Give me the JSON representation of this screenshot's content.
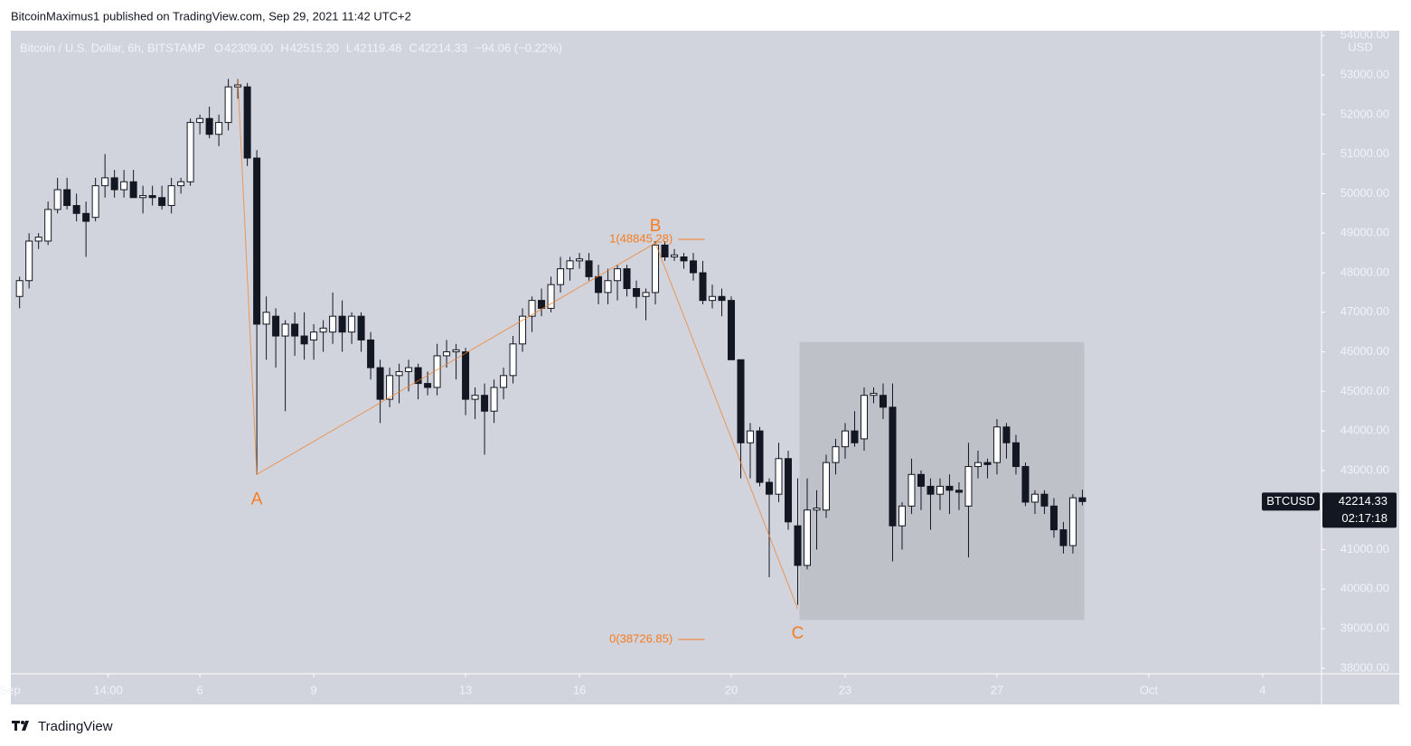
{
  "attribution": "BitcoinMaximus1 published on TradingView.com, Sep 29, 2021 11:42 UTC+2",
  "footer": "TradingView",
  "chart_data": {
    "type": "candlestick",
    "title": "Bitcoin / U.S. Dollar, 6h, BITSTAMP",
    "ohlc_header": [
      {
        "key": "O",
        "value": "42309.00"
      },
      {
        "key": "H",
        "value": "42515.20"
      },
      {
        "key": "L",
        "value": "42119.48"
      },
      {
        "key": "C",
        "value": "42214.33"
      }
    ],
    "change": "−94.06 (−0.22%)",
    "y_axis_label": "USD",
    "up_color": "#ffffff",
    "down_color": "#131722",
    "x": [
      1.25,
      1.5,
      1.75,
      2,
      2.25,
      2.5,
      2.75,
      3,
      3.25,
      3.5,
      3.75,
      4,
      4.25,
      4.5,
      4.75,
      5,
      5.25,
      5.5,
      5.75,
      6,
      6.25,
      6.5,
      6.75,
      7,
      7.25,
      7.5,
      7.75,
      8,
      8.25,
      8.5,
      8.75,
      9,
      9.25,
      9.5,
      9.75,
      10,
      10.25,
      10.5,
      10.75,
      11,
      11.25,
      11.5,
      11.75,
      12,
      12.25,
      12.5,
      12.75,
      13,
      13.25,
      13.5,
      13.75,
      14,
      14.25,
      14.5,
      14.75,
      15,
      15.25,
      15.5,
      15.75,
      16,
      16.25,
      16.5,
      16.75,
      17,
      17.25,
      17.5,
      17.75,
      18,
      18.25,
      18.5,
      18.75,
      19,
      19.25,
      19.5,
      19.75,
      20,
      20.25,
      20.5,
      20.75,
      21,
      21.25,
      21.5,
      21.75,
      22,
      22.25,
      22.5,
      22.75,
      23,
      23.25,
      23.5,
      23.75,
      24,
      24.25,
      24.5,
      24.75,
      25,
      25.25,
      25.5,
      25.75,
      26,
      26.25,
      26.5,
      26.75,
      27,
      27.25,
      27.5,
      27.75,
      28,
      28.25,
      28.5,
      28.75,
      29,
      29.25
    ],
    "open": [
      47400,
      47800,
      48800,
      48800,
      49600,
      50100,
      49700,
      49500,
      49400,
      50200,
      50400,
      50100,
      50300,
      49900,
      49950,
      49900,
      49700,
      50200,
      50300,
      51800,
      51900,
      51500,
      51800,
      52700,
      52700,
      50900,
      46700,
      46900,
      46400,
      46700,
      46400,
      46300,
      46500,
      46500,
      46900,
      46500,
      46900,
      46300,
      45600,
      44800,
      45400,
      45500,
      45600,
      45200,
      45100,
      45900,
      46000,
      46000,
      44800,
      44900,
      44500,
      45100,
      45400,
      46200,
      46900,
      47300,
      47100,
      47700,
      48100,
      48300,
      48300,
      47900,
      47500,
      47800,
      48100,
      47600,
      47400,
      47500,
      48700,
      48400,
      48400,
      48300,
      48000,
      47300,
      47400,
      47300,
      45800,
      43700,
      44000,
      42700,
      42400,
      43300,
      41600,
      40600,
      42000,
      42000,
      43200,
      43600,
      44000,
      43800,
      44900,
      44900,
      44600,
      41600,
      42100,
      42900,
      42600,
      42400,
      42600,
      42500,
      42100,
      43100,
      43200,
      43200,
      44100,
      43700,
      43100,
      42200,
      42400,
      42100,
      41500,
      41100,
      42309
    ],
    "high": [
      47900,
      49000,
      49000,
      49800,
      50400,
      50400,
      50000,
      49800,
      50400,
      51000,
      50600,
      50600,
      50600,
      50200,
      50200,
      50200,
      50400,
      50400,
      51900,
      52000,
      52200,
      52000,
      52900,
      52900,
      52800,
      51100,
      47400,
      47100,
      46800,
      47000,
      47000,
      46700,
      46800,
      47500,
      47300,
      47000,
      47000,
      46500,
      45800,
      45600,
      45700,
      45800,
      45700,
      45500,
      46200,
      46300,
      46200,
      46100,
      45100,
      45200,
      45300,
      45600,
      46400,
      47100,
      47400,
      47600,
      47900,
      48400,
      48400,
      48500,
      48500,
      48200,
      48100,
      48200,
      48200,
      47800,
      47600,
      48800,
      48800,
      48600,
      48500,
      48500,
      48300,
      47700,
      47600,
      47400,
      45800,
      44200,
      44100,
      42800,
      43700,
      43500,
      42800,
      42800,
      42500,
      43400,
      43800,
      44200,
      44500,
      45100,
      45100,
      45200,
      45200,
      42200,
      43300,
      43000,
      42800,
      42800,
      42900,
      42700,
      43700,
      43500,
      43300,
      44300,
      44200,
      43900,
      43200,
      42500,
      42500,
      42300,
      41700,
      42400,
      42515.2
    ],
    "low": [
      47100,
      47600,
      48600,
      48700,
      49500,
      49600,
      49300,
      48400,
      49300,
      49900,
      49900,
      49900,
      49900,
      49500,
      49700,
      49600,
      49500,
      50000,
      50200,
      51500,
      51400,
      51200,
      51600,
      52400,
      50700,
      42900,
      45800,
      45600,
      44500,
      45900,
      45800,
      45800,
      46000,
      46200,
      46000,
      46200,
      46000,
      45300,
      44200,
      44600,
      44700,
      45000,
      44800,
      44900,
      44900,
      45600,
      45300,
      44400,
      44300,
      43400,
      44200,
      44800,
      45200,
      46000,
      46500,
      46900,
      47000,
      47500,
      47800,
      48100,
      47800,
      47200,
      47200,
      47300,
      47400,
      47100,
      46800,
      47200,
      48300,
      48300,
      48100,
      47800,
      47200,
      47100,
      46900,
      45800,
      42800,
      42800,
      42600,
      40300,
      42200,
      41500,
      39600,
      40500,
      41000,
      41800,
      42900,
      43300,
      43600,
      43500,
      44700,
      44300,
      40700,
      41000,
      41900,
      42000,
      41500,
      42000,
      41900,
      42000,
      40800,
      42800,
      42800,
      42900,
      43300,
      42900,
      42100,
      41900,
      41900,
      41300,
      40900,
      40900,
      42119.48
    ],
    "close": [
      47800,
      48800,
      48900,
      49600,
      50100,
      49700,
      49500,
      49300,
      50200,
      50400,
      50100,
      50300,
      49900,
      49950,
      49900,
      49700,
      50200,
      50300,
      51800,
      51900,
      51500,
      51800,
      52700,
      52750,
      50900,
      46700,
      47000,
      46400,
      46700,
      46400,
      46200,
      46500,
      46600,
      46900,
      46500,
      46900,
      46300,
      45600,
      44800,
      45400,
      45500,
      45600,
      45200,
      45100,
      45900,
      46000,
      46050,
      44800,
      44900,
      44500,
      45100,
      45400,
      46200,
      46900,
      47300,
      47100,
      47700,
      48100,
      48300,
      48350,
      47900,
      47500,
      47800,
      48100,
      47600,
      47400,
      47500,
      48700,
      48400,
      48450,
      48300,
      48000,
      47300,
      47400,
      47300,
      45800,
      43700,
      44000,
      42700,
      42400,
      43300,
      41700,
      40600,
      42000,
      42050,
      43200,
      43600,
      44000,
      43700,
      44900,
      44950,
      44600,
      41600,
      42100,
      42900,
      42600,
      42400,
      42600,
      42500,
      42450,
      43100,
      43200,
      43150,
      44100,
      43700,
      43100,
      42200,
      42400,
      42100,
      41500,
      41100,
      42309,
      42214.33
    ],
    "xlim": [
      1.02,
      35.55
    ],
    "ylim": [
      37860,
      54120
    ],
    "xticks": [
      {
        "value": 1,
        "label": "Sep"
      },
      {
        "value": 3.583,
        "label": "14:00"
      },
      6,
      9,
      13,
      16,
      20,
      23,
      27,
      {
        "value": 31,
        "label": "Oct"
      },
      {
        "value": 34,
        "label": "4"
      }
    ],
    "yticks": [
      {
        "value": 38000,
        "label": "38000.00"
      },
      {
        "value": 39000,
        "label": "39000.00"
      },
      {
        "value": 40000,
        "label": "40000.00"
      },
      {
        "value": 41000,
        "label": "41000.00"
      },
      {
        "value": 42000,
        "label": "42000.00"
      },
      {
        "value": 43000,
        "label": "43000.00"
      },
      {
        "value": 44000,
        "label": "44000.00"
      },
      {
        "value": 45000,
        "label": "45000.00"
      },
      {
        "value": 46000,
        "label": "46000.00"
      },
      {
        "value": 47000,
        "label": "47000.00"
      },
      {
        "value": 48000,
        "label": "48000.00"
      },
      {
        "value": 49000,
        "label": "49000.00"
      },
      {
        "value": 50000,
        "label": "50000.00"
      },
      {
        "value": 51000,
        "label": "51000.00"
      },
      {
        "value": 52000,
        "label": "52000.00"
      },
      {
        "value": 53000,
        "label": "53000.00"
      },
      {
        "value": 54000,
        "label": "54000.00"
      }
    ],
    "grid": false,
    "annotation_color": "#f57c1f",
    "wave_line": {
      "x": [
        7.0,
        7.5,
        18.0,
        21.75
      ],
      "y": [
        52900,
        42900,
        48750,
        39500
      ]
    },
    "wave_labels": [
      "A",
      "B",
      "C"
    ],
    "fib_x": [
      18.6,
      19.3
    ],
    "fib_levels": [
      {
        "label": "1(48845.28)",
        "value": 48845.28
      },
      {
        "label": "0(38726.85)",
        "value": 38726.85
      }
    ],
    "box": {
      "x": [
        21.8,
        29.3
      ],
      "y": [
        39220,
        46250
      ],
      "color": "#bfc1c8"
    },
    "price_tag": {
      "symbol": "BTCUSD",
      "value": 42214.33,
      "countdown": "02:17:18"
    }
  }
}
